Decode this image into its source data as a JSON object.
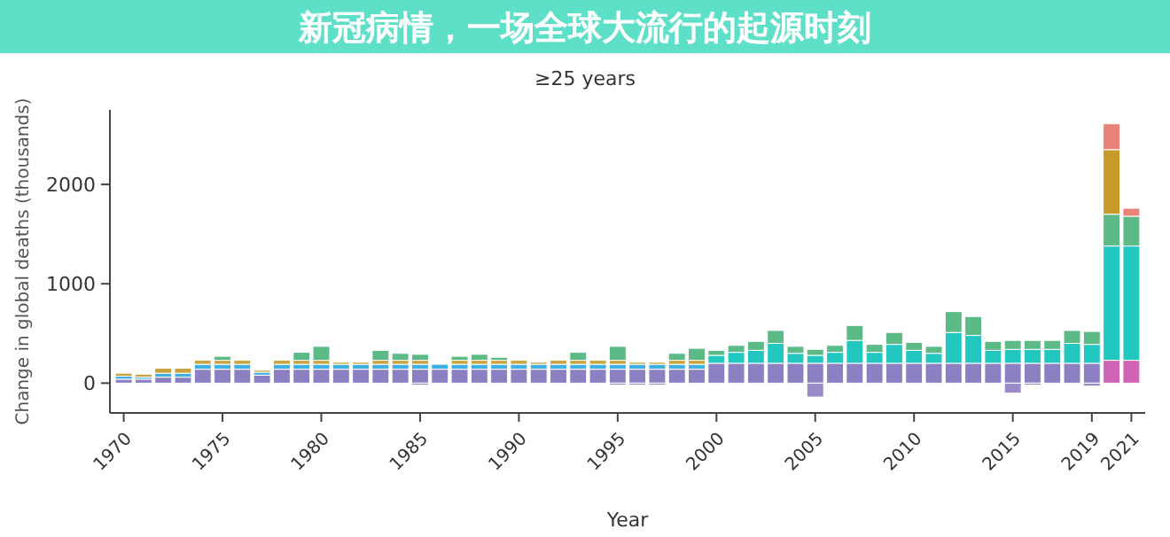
{
  "chart_data": {
    "type": "bar",
    "stacked": true,
    "title": "新冠病情，一场全球大流行的起源时刻",
    "subtitle": "≥25 years",
    "xlabel": "Year",
    "ylabel": "Change in global deaths (thousands)",
    "x": [
      1970,
      1971,
      1972,
      1973,
      1974,
      1975,
      1976,
      1977,
      1978,
      1979,
      1980,
      1981,
      1982,
      1983,
      1984,
      1985,
      1986,
      1987,
      1988,
      1989,
      1990,
      1991,
      1992,
      1993,
      1994,
      1995,
      1996,
      1997,
      1998,
      1999,
      2000,
      2001,
      2002,
      2003,
      2004,
      2005,
      2006,
      2007,
      2008,
      2009,
      2010,
      2011,
      2012,
      2013,
      2014,
      2015,
      2016,
      2017,
      2018,
      2019,
      2020,
      2021
    ],
    "xlim": [
      1969.3,
      2021.7
    ],
    "xticks": [
      1970,
      1975,
      1980,
      1985,
      1990,
      1995,
      2000,
      2005,
      2010,
      2015,
      2019,
      2021
    ],
    "ylim": [
      -300,
      2750
    ],
    "yticks": [
      0,
      1000,
      2000
    ],
    "grid": false,
    "series": [
      {
        "color": "#8c80c2",
        "values": [
          40,
          40,
          60,
          60,
          140,
          140,
          140,
          80,
          140,
          140,
          140,
          140,
          140,
          140,
          140,
          140,
          140,
          140,
          140,
          140,
          140,
          140,
          140,
          140,
          140,
          140,
          140,
          140,
          140,
          140,
          200,
          200,
          200,
          200,
          200,
          200,
          200,
          200,
          200,
          200,
          200,
          200,
          200,
          200,
          200,
          200,
          200,
          200,
          200,
          200,
          null,
          null
        ]
      },
      {
        "color": "#d063b4",
        "values": [
          null,
          null,
          null,
          null,
          null,
          null,
          null,
          null,
          null,
          null,
          null,
          null,
          null,
          null,
          null,
          null,
          null,
          null,
          null,
          null,
          null,
          null,
          null,
          null,
          null,
          null,
          null,
          null,
          null,
          null,
          null,
          null,
          null,
          null,
          null,
          null,
          null,
          null,
          null,
          null,
          null,
          null,
          null,
          null,
          null,
          null,
          null,
          null,
          null,
          null,
          230,
          230
        ]
      },
      {
        "color": "#3fb0e2",
        "values": [
          30,
          20,
          40,
          40,
          50,
          50,
          50,
          30,
          50,
          50,
          50,
          50,
          50,
          50,
          50,
          50,
          50,
          50,
          50,
          50,
          50,
          50,
          50,
          50,
          50,
          50,
          50,
          50,
          50,
          50,
          null,
          null,
          null,
          null,
          null,
          null,
          null,
          null,
          null,
          null,
          null,
          null,
          null,
          null,
          null,
          null,
          null,
          null,
          null,
          null,
          null,
          null
        ]
      },
      {
        "color": "#22c8c0",
        "values": [
          null,
          null,
          null,
          null,
          null,
          null,
          null,
          null,
          null,
          null,
          null,
          null,
          null,
          null,
          null,
          null,
          null,
          null,
          null,
          null,
          null,
          null,
          null,
          null,
          null,
          null,
          null,
          null,
          null,
          null,
          80,
          110,
          130,
          200,
          100,
          80,
          110,
          230,
          110,
          190,
          130,
          100,
          310,
          280,
          130,
          140,
          140,
          140,
          200,
          190,
          1150,
          1150
        ]
      },
      {
        "color": "#c9a43c",
        "values": [
          30,
          30,
          50,
          50,
          40,
          40,
          40,
          20,
          40,
          40,
          40,
          20,
          20,
          40,
          40,
          40,
          null,
          40,
          40,
          40,
          40,
          20,
          40,
          40,
          40,
          40,
          20,
          20,
          40,
          40,
          null,
          null,
          null,
          null,
          null,
          null,
          null,
          null,
          null,
          null,
          null,
          null,
          null,
          null,
          null,
          null,
          null,
          null,
          null,
          null,
          null,
          null
        ]
      },
      {
        "color": "#5cba86",
        "values": [
          null,
          null,
          null,
          null,
          null,
          40,
          null,
          null,
          null,
          80,
          140,
          null,
          null,
          100,
          70,
          60,
          null,
          40,
          60,
          30,
          null,
          null,
          null,
          80,
          null,
          140,
          null,
          null,
          70,
          120,
          50,
          70,
          90,
          130,
          70,
          60,
          70,
          150,
          80,
          120,
          80,
          70,
          210,
          190,
          90,
          90,
          90,
          90,
          130,
          130,
          320,
          300
        ]
      },
      {
        "color": "#c79a2a",
        "values": [
          null,
          null,
          null,
          null,
          null,
          null,
          null,
          null,
          null,
          null,
          null,
          null,
          null,
          null,
          null,
          null,
          null,
          null,
          null,
          null,
          null,
          null,
          null,
          null,
          null,
          null,
          null,
          null,
          null,
          null,
          null,
          null,
          null,
          null,
          null,
          null,
          null,
          null,
          null,
          null,
          null,
          null,
          null,
          null,
          null,
          null,
          null,
          null,
          null,
          null,
          650,
          null
        ]
      },
      {
        "color": "#e8837a",
        "values": [
          null,
          null,
          null,
          null,
          null,
          null,
          null,
          null,
          null,
          null,
          null,
          null,
          null,
          null,
          null,
          null,
          null,
          null,
          null,
          null,
          null,
          null,
          null,
          null,
          null,
          null,
          null,
          null,
          null,
          null,
          null,
          null,
          null,
          null,
          null,
          null,
          null,
          null,
          null,
          null,
          null,
          null,
          null,
          null,
          null,
          null,
          null,
          null,
          null,
          null,
          260,
          80
        ]
      },
      {
        "color": "#9a8ac8",
        "values": [
          null,
          null,
          null,
          null,
          null,
          null,
          null,
          null,
          null,
          null,
          null,
          null,
          null,
          null,
          null,
          -20,
          null,
          null,
          null,
          null,
          null,
          null,
          null,
          null,
          null,
          -20,
          -20,
          -20,
          null,
          null,
          null,
          null,
          null,
          null,
          null,
          -140,
          null,
          null,
          null,
          null,
          null,
          null,
          null,
          null,
          null,
          -100,
          -20,
          null,
          null,
          -30,
          null,
          null
        ]
      }
    ]
  }
}
